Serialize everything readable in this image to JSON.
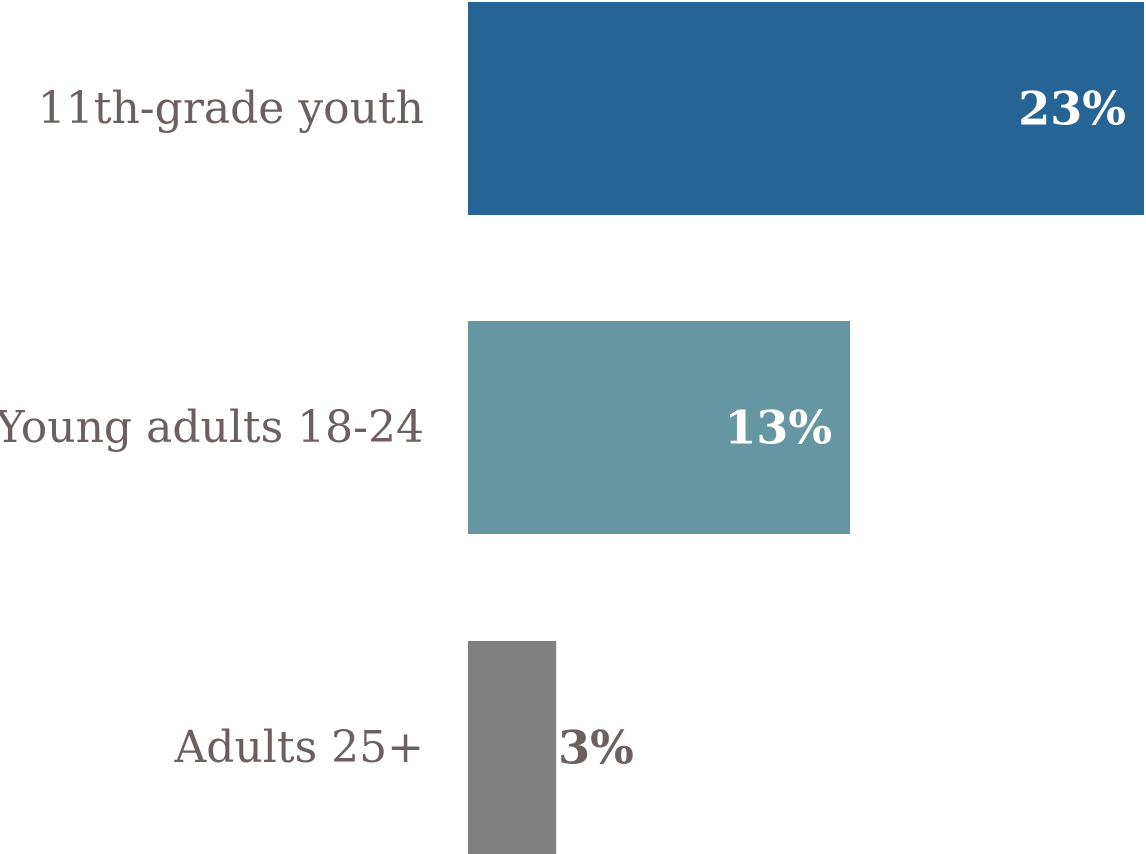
{
  "chart_data": {
    "type": "bar",
    "orientation": "horizontal",
    "categories": [
      "11th-grade youth",
      "Young adults 18-24",
      "Adults 25+"
    ],
    "values": [
      23,
      13,
      3
    ],
    "value_labels": [
      "23%",
      "13%",
      "3%"
    ],
    "unit": "%",
    "title": "",
    "xlabel": "",
    "ylabel": "",
    "xlim": [
      0,
      23
    ],
    "grid": false,
    "legend": "none",
    "bar_colors": [
      "#266496",
      "#6696a2",
      "#808080"
    ],
    "value_label_colors": [
      "#ffffff",
      "#ffffff",
      "#6b5f5f"
    ],
    "category_label_color": "#6b5f5f"
  }
}
